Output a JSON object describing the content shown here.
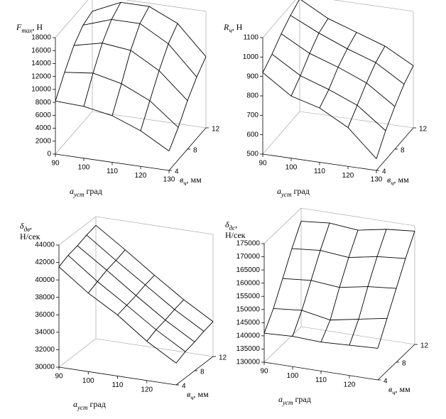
{
  "chart_data": [
    {
      "type": "surface",
      "z_label": {
        "name": "F",
        "sub": "max",
        "unit": ", Н"
      },
      "x_label": {
        "name": "a",
        "sub": "уст",
        "unit": " град"
      },
      "y_label": {
        "name": "в",
        "sub": "ч",
        "unit": ", мм"
      },
      "x": [
        90,
        100,
        110,
        120,
        130
      ],
      "y": [
        4,
        6,
        8,
        10,
        12
      ],
      "z": [
        [
          8200,
          8000,
          7200,
          5500,
          3000
        ],
        [
          11000,
          11500,
          10500,
          8500,
          5000
        ],
        [
          13500,
          14500,
          14000,
          11500,
          7500
        ],
        [
          15000,
          16500,
          16500,
          14000,
          9500
        ],
        [
          15500,
          17500,
          17500,
          15500,
          11000
        ]
      ],
      "xlim": [
        90,
        130
      ],
      "ylim": [
        4,
        12
      ],
      "zlim": [
        0,
        18000
      ],
      "xticks": [
        90,
        100,
        110,
        120,
        130
      ],
      "yticks": [
        4,
        8,
        12
      ],
      "zticks": [
        0,
        2000,
        4000,
        6000,
        8000,
        10000,
        12000,
        14000,
        16000,
        18000
      ]
    },
    {
      "type": "surface",
      "z_label": {
        "name": "R",
        "sub": "ч",
        "unit": ", Н"
      },
      "x_label": {
        "name": "a",
        "sub": "уст",
        "unit": " град"
      },
      "y_label": {
        "name": "в",
        "sub": "ч",
        "unit": ", мм"
      },
      "x": [
        90,
        100,
        110,
        120,
        130
      ],
      "y": [
        4,
        6,
        8,
        10,
        12
      ],
      "z": [
        [
          920,
          820,
          780,
          700,
          560
        ],
        [
          960,
          870,
          820,
          760,
          650
        ],
        [
          1010,
          930,
          880,
          820,
          720
        ],
        [
          1050,
          980,
          920,
          870,
          780
        ],
        [
          1080,
          1000,
          950,
          900,
          820
        ]
      ],
      "xlim": [
        90,
        130
      ],
      "ylim": [
        4,
        12
      ],
      "zlim": [
        500,
        1100
      ],
      "xticks": [
        90,
        100,
        110,
        120,
        130
      ],
      "yticks": [
        4,
        8,
        12
      ],
      "zticks": [
        500,
        600,
        700,
        800,
        900,
        1000,
        1100
      ]
    },
    {
      "type": "surface",
      "z_label": {
        "name": "δ",
        "sub": "дв",
        "unit": ",",
        "unit2": "Н/сек"
      },
      "x_label": {
        "name": "a",
        "sub": "уст",
        "unit": " град"
      },
      "y_label": {
        "name": "в",
        "sub": "ч",
        "unit": ", мм"
      },
      "x": [
        90,
        100,
        110,
        120,
        130
      ],
      "y": [
        4,
        6,
        8,
        10,
        12
      ],
      "z": [
        [
          41500,
          39000,
          37000,
          34500,
          32500
        ],
        [
          42000,
          39500,
          37300,
          35000,
          33000
        ],
        [
          42300,
          40000,
          37600,
          35300,
          33300
        ],
        [
          42700,
          40300,
          38000,
          35700,
          33700
        ],
        [
          43000,
          40700,
          38300,
          36000,
          34000
        ]
      ],
      "xlim": [
        90,
        130
      ],
      "ylim": [
        4,
        12
      ],
      "zlim": [
        30000,
        44000
      ],
      "xticks": [
        90,
        100,
        110,
        120
      ],
      "yticks": [
        4,
        8,
        12
      ],
      "zticks": [
        30000,
        32000,
        34000,
        36000,
        38000,
        40000,
        42000,
        44000
      ]
    },
    {
      "type": "surface",
      "z_label": {
        "name": "δ",
        "sub": "дс",
        "unit": ",",
        "unit2": "Н/сек"
      },
      "x_label": {
        "name": "a",
        "sub": "уст",
        "unit": " град"
      },
      "y_label": {
        "name": "в",
        "sub": "ч",
        "unit": ", мм"
      },
      "x": [
        90,
        100,
        110,
        120,
        130
      ],
      "y": [
        4,
        6,
        8,
        10,
        12
      ],
      "z": [
        [
          141000,
          141500,
          141000,
          141500,
          142000
        ],
        [
          147000,
          148000,
          146000,
          148000,
          150000
        ],
        [
          155000,
          156000,
          155000,
          157000,
          158000
        ],
        [
          163000,
          164000,
          163000,
          165000,
          166000
        ],
        [
          170000,
          171000,
          170000,
          172000,
          173000
        ]
      ],
      "xlim": [
        90,
        130
      ],
      "ylim": [
        4,
        12
      ],
      "zlim": [
        130000,
        175000
      ],
      "xticks": [
        90,
        100,
        110,
        120
      ],
      "yticks": [
        4,
        8,
        12
      ],
      "zticks": [
        130000,
        135000,
        140000,
        145000,
        150000,
        155000,
        160000,
        165000,
        170000,
        175000
      ]
    }
  ]
}
